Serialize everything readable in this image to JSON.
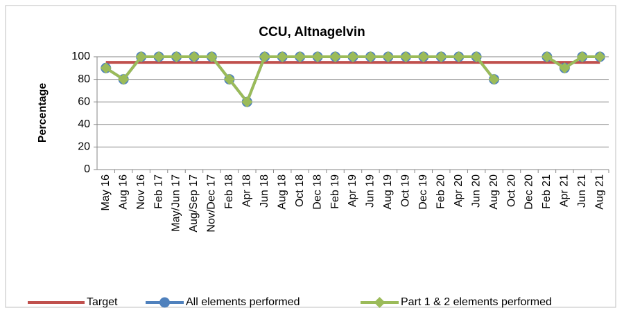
{
  "chart_data": {
    "type": "line",
    "title": "CCU, Altnagelvin",
    "y_label": "Percentage",
    "categories": [
      "May 16",
      "Aug 16",
      "Nov 16",
      "Feb 17",
      "May/Jun 17",
      "Aug/Sep 17",
      "Nov/Dec 17",
      "Feb 18",
      "Apr 18",
      "Jun 18",
      "Aug 18",
      "Oct 18",
      "Dec 18",
      "Feb 19",
      "Apr 19",
      "Jun 19",
      "Aug 19",
      "Oct 19",
      "Dec 19",
      "Feb 20",
      "Apr 20",
      "Jun 20",
      "Aug 20",
      "Oct 20",
      "Dec 20",
      "Feb 21",
      "Apr 21",
      "Jun 21",
      "Aug 21"
    ],
    "series": [
      {
        "name": "Target",
        "color": "#c0504d",
        "marker": "none",
        "values": [
          95,
          95,
          95,
          95,
          95,
          95,
          95,
          95,
          95,
          95,
          95,
          95,
          95,
          95,
          95,
          95,
          95,
          95,
          95,
          95,
          95,
          95,
          95,
          95,
          95,
          95,
          95,
          95,
          95
        ]
      },
      {
        "name": "All elements performed",
        "color": "#4f81bd",
        "marker": "circle",
        "values": [
          90,
          80,
          100,
          100,
          100,
          100,
          100,
          80,
          60,
          100,
          100,
          100,
          100,
          100,
          100,
          100,
          100,
          100,
          100,
          100,
          100,
          100,
          80,
          null,
          null,
          100,
          90,
          100,
          100
        ]
      },
      {
        "name": "Part 1 & 2 elements performed",
        "color": "#9bbb59",
        "marker": "diamond",
        "values": [
          90,
          80,
          100,
          100,
          100,
          100,
          100,
          80,
          60,
          100,
          100,
          100,
          100,
          100,
          100,
          100,
          100,
          100,
          100,
          100,
          100,
          100,
          80,
          null,
          null,
          100,
          90,
          100,
          100
        ]
      }
    ],
    "ylim": [
      0,
      100
    ],
    "yticks": [
      0,
      20,
      40,
      60,
      80,
      100
    ],
    "grid": true,
    "legend": "bottom"
  }
}
